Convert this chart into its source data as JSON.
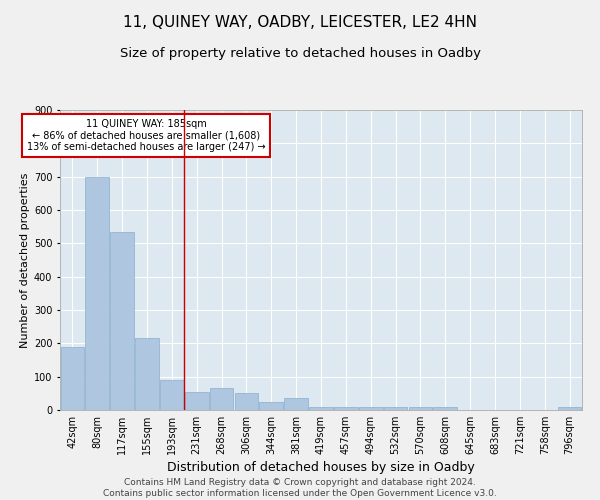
{
  "title": "11, QUINEY WAY, OADBY, LEICESTER, LE2 4HN",
  "subtitle": "Size of property relative to detached houses in Oadby",
  "xlabel": "Distribution of detached houses by size in Oadby",
  "ylabel": "Number of detached properties",
  "categories": [
    "42sqm",
    "80sqm",
    "117sqm",
    "155sqm",
    "193sqm",
    "231sqm",
    "268sqm",
    "306sqm",
    "344sqm",
    "381sqm",
    "419sqm",
    "457sqm",
    "494sqm",
    "532sqm",
    "570sqm",
    "608sqm",
    "645sqm",
    "683sqm",
    "721sqm",
    "758sqm",
    "796sqm"
  ],
  "values": [
    190,
    700,
    535,
    215,
    90,
    55,
    65,
    50,
    25,
    35,
    10,
    10,
    10,
    8,
    8,
    8,
    0,
    0,
    0,
    0,
    10
  ],
  "bar_color": "#aec6df",
  "bar_edge_color": "#8ab0cc",
  "annotation_text": "11 QUINEY WAY: 185sqm\n← 86% of detached houses are smaller (1,608)\n13% of semi-detached houses are larger (247) →",
  "annotation_box_color": "#ffffff",
  "annotation_box_edge_color": "#cc0000",
  "vline_color": "#cc0000",
  "vline_x": 4.5,
  "ylim": [
    0,
    900
  ],
  "yticks": [
    0,
    100,
    200,
    300,
    400,
    500,
    600,
    700,
    800,
    900
  ],
  "plot_background": "#dde8f0",
  "grid_color": "#ffffff",
  "footer_text": "Contains HM Land Registry data © Crown copyright and database right 2024.\nContains public sector information licensed under the Open Government Licence v3.0.",
  "title_fontsize": 11,
  "subtitle_fontsize": 9.5,
  "xlabel_fontsize": 9,
  "ylabel_fontsize": 8,
  "tick_fontsize": 7,
  "annotation_fontsize": 7,
  "footer_fontsize": 6.5
}
